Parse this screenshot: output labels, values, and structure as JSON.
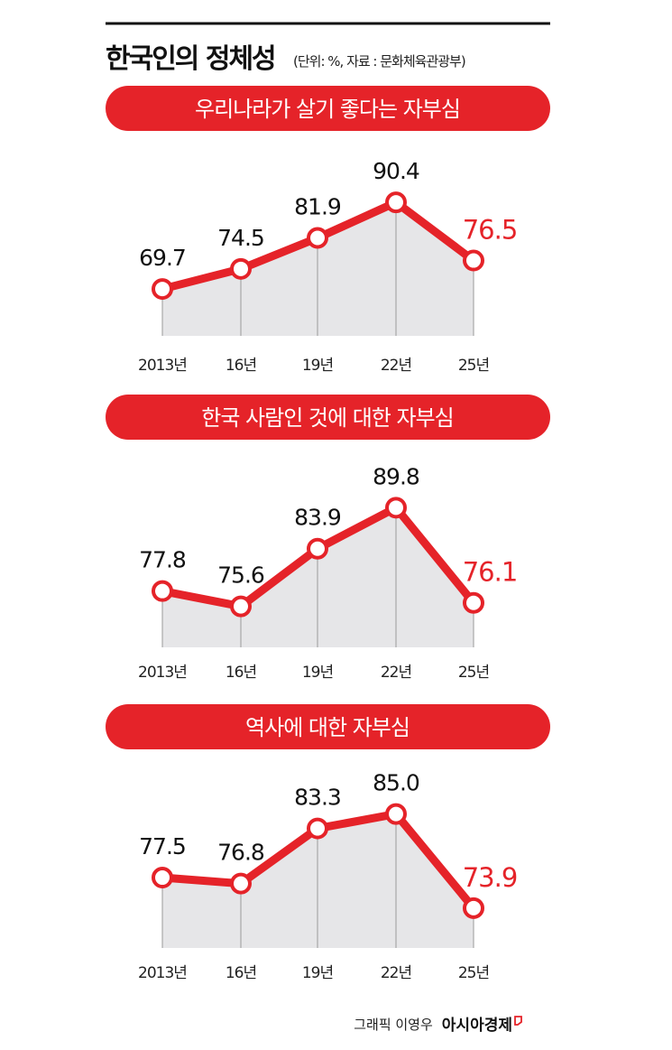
{
  "title": "한국인의 정체성",
  "subtitle": "(단위: %, 자료 : 문화체육관광부)",
  "colors": {
    "accent": "#e52329",
    "fill": "#e6e6e8",
    "grid": "#9a9a9a"
  },
  "credit": "그래픽 이영우",
  "brand": "아시아경제",
  "chart_data": [
    {
      "type": "line",
      "title": "우리나라가 살기 좋다는 자부심",
      "categories": [
        "2013년",
        "16년",
        "19년",
        "22년",
        "25년"
      ],
      "values": [
        69.7,
        74.5,
        81.9,
        90.4,
        76.5
      ],
      "labels": [
        "69.7",
        "74.5",
        "81.9",
        "90.4",
        "76.5"
      ],
      "ylim": [
        58.5,
        95.6
      ],
      "unit": "%"
    },
    {
      "type": "line",
      "title": "한국 사람인 것에 대한 자부심",
      "categories": [
        "2013년",
        "16년",
        "19년",
        "22년",
        "25년"
      ],
      "values": [
        77.8,
        75.6,
        83.9,
        89.8,
        76.1
      ],
      "labels": [
        "77.8",
        "75.6",
        "83.9",
        "89.8",
        "76.1"
      ],
      "ylim": [
        69.7,
        92.7
      ],
      "unit": "%"
    },
    {
      "type": "line",
      "title": "역사에 대한 자부심",
      "categories": [
        "2013년",
        "16년",
        "19년",
        "22년",
        "25년"
      ],
      "values": [
        77.5,
        76.8,
        83.3,
        85.0,
        73.9
      ],
      "labels": [
        "77.5",
        "76.8",
        "83.3",
        "85.0",
        "73.9"
      ],
      "ylim": [
        69.2,
        87.3
      ],
      "unit": "%"
    }
  ]
}
